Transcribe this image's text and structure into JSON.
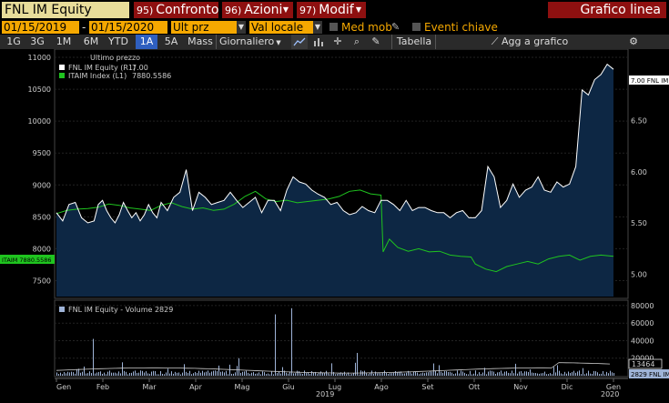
{
  "header": {
    "ticker": "FNL IM Equity",
    "buttons": [
      {
        "num": "95)",
        "label": "Confronto"
      },
      {
        "num": "96)",
        "label": "Azioni"
      },
      {
        "num": "97)",
        "label": "Modif"
      }
    ],
    "title": "Grafico linea"
  },
  "dates": {
    "start": "01/15/2019",
    "separator": "-",
    "end": "01/15/2020",
    "field": "Ult prz",
    "currency": "Val locale",
    "med_mob": "Med mob",
    "eventi": "Eventi chiave"
  },
  "ranges": {
    "items": [
      "1G",
      "3G",
      "1M",
      "6M",
      "YTD",
      "1A",
      "5A",
      "Mass"
    ],
    "active": "1A",
    "frequency": "Giornaliero",
    "table": "Tabella",
    "add": "Agg a grafico"
  },
  "colors": {
    "price_line": "#ffffff",
    "index_line": "#1fc41f",
    "area_fill": "#0d2744",
    "volume_bar": "#9fb4d8",
    "volume_avg": "#cccccc"
  },
  "chart_data": {
    "type": "line",
    "legend": {
      "title": "Ultimo prezzo",
      "entries": [
        {
          "name": "FNL IM Equity  (R1)",
          "value": "7.00"
        },
        {
          "name": "ITAIM Index  (L1)",
          "value": "7880.5586"
        }
      ]
    },
    "left_axis": {
      "ticks": [
        7500,
        8000,
        8500,
        9000,
        9500,
        10000,
        10500,
        11000
      ],
      "range": [
        7250,
        11100
      ]
    },
    "right_axis": {
      "ticks": [
        "5.00",
        "5.50",
        "6.00",
        "6.50"
      ],
      "range": [
        4.78,
        7.18
      ]
    },
    "last_labels": {
      "price": "7.00 FNL IM",
      "index": "ITAIM 7880.5586"
    },
    "x_months": [
      "Gen",
      "Feb",
      "Mar",
      "Apr",
      "Mag",
      "Giu",
      "Lug",
      "Ago",
      "Set",
      "Ott",
      "Nov",
      "Dic",
      "Gen"
    ],
    "x_years": [
      "2019",
      "2020"
    ],
    "series": [
      {
        "name": "FNL IM Equity",
        "axis": "R1",
        "points": [
          [
            0,
            5.6
          ],
          [
            0.3,
            5.52
          ],
          [
            0.6,
            5.68
          ],
          [
            0.9,
            5.7
          ],
          [
            1.2,
            5.55
          ],
          [
            1.5,
            5.5
          ],
          [
            1.8,
            5.52
          ],
          [
            2.0,
            5.68
          ],
          [
            2.2,
            5.72
          ],
          [
            2.4,
            5.62
          ],
          [
            2.6,
            5.55
          ],
          [
            2.8,
            5.5
          ],
          [
            3.0,
            5.58
          ],
          [
            3.2,
            5.7
          ],
          [
            3.4,
            5.62
          ],
          [
            3.6,
            5.55
          ],
          [
            3.8,
            5.6
          ],
          [
            4.0,
            5.52
          ],
          [
            4.2,
            5.58
          ],
          [
            4.4,
            5.68
          ],
          [
            4.6,
            5.6
          ],
          [
            4.8,
            5.55
          ],
          [
            5.0,
            5.7
          ],
          [
            5.3,
            5.62
          ],
          [
            5.6,
            5.75
          ],
          [
            5.9,
            5.8
          ],
          [
            6.2,
            6.02
          ],
          [
            6.5,
            5.62
          ],
          [
            6.8,
            5.8
          ],
          [
            7.1,
            5.75
          ],
          [
            7.4,
            5.68
          ],
          [
            7.7,
            5.7
          ],
          [
            8.0,
            5.72
          ],
          [
            8.3,
            5.8
          ],
          [
            8.6,
            5.72
          ],
          [
            8.9,
            5.65
          ],
          [
            9.2,
            5.7
          ],
          [
            9.5,
            5.75
          ],
          [
            9.8,
            5.6
          ],
          [
            10.1,
            5.72
          ],
          [
            10.4,
            5.72
          ],
          [
            10.7,
            5.62
          ],
          [
            11.0,
            5.82
          ],
          [
            11.3,
            5.95
          ],
          [
            11.6,
            5.9
          ],
          [
            11.9,
            5.88
          ],
          [
            12.2,
            5.82
          ],
          [
            12.5,
            5.78
          ],
          [
            12.8,
            5.75
          ],
          [
            13.1,
            5.68
          ],
          [
            13.4,
            5.7
          ],
          [
            13.7,
            5.62
          ],
          [
            14.0,
            5.58
          ],
          [
            14.3,
            5.6
          ],
          [
            14.6,
            5.66
          ],
          [
            14.9,
            5.62
          ],
          [
            15.2,
            5.6
          ],
          [
            15.5,
            5.72
          ],
          [
            15.8,
            5.72
          ],
          [
            16.1,
            5.68
          ],
          [
            16.4,
            5.62
          ],
          [
            16.7,
            5.72
          ],
          [
            17.0,
            5.62
          ],
          [
            17.3,
            5.65
          ],
          [
            17.6,
            5.65
          ],
          [
            17.9,
            5.62
          ],
          [
            18.2,
            5.6
          ],
          [
            18.5,
            5.6
          ],
          [
            18.8,
            5.55
          ],
          [
            19.1,
            5.6
          ],
          [
            19.4,
            5.62
          ],
          [
            19.7,
            5.55
          ],
          [
            20.0,
            5.55
          ],
          [
            20.3,
            5.62
          ],
          [
            20.6,
            6.05
          ],
          [
            20.9,
            5.95
          ],
          [
            21.2,
            5.65
          ],
          [
            21.5,
            5.72
          ],
          [
            21.8,
            5.88
          ],
          [
            22.1,
            5.75
          ],
          [
            22.4,
            5.82
          ],
          [
            22.7,
            5.85
          ],
          [
            23.0,
            5.95
          ],
          [
            23.3,
            5.82
          ],
          [
            23.6,
            5.8
          ],
          [
            23.9,
            5.9
          ],
          [
            24.2,
            5.85
          ],
          [
            24.5,
            5.88
          ],
          [
            24.8,
            6.05
          ],
          [
            25.1,
            6.8
          ],
          [
            25.4,
            6.75
          ],
          [
            25.7,
            6.9
          ],
          [
            26.0,
            6.95
          ],
          [
            26.3,
            7.05
          ],
          [
            26.6,
            7.0
          ]
        ]
      },
      {
        "name": "ITAIM Index",
        "axis": "L1",
        "points": [
          [
            0,
            8550
          ],
          [
            0.5,
            8600
          ],
          [
            1.0,
            8620
          ],
          [
            1.5,
            8630
          ],
          [
            2.0,
            8650
          ],
          [
            2.5,
            8700
          ],
          [
            3.0,
            8680
          ],
          [
            3.5,
            8640
          ],
          [
            4.0,
            8620
          ],
          [
            4.5,
            8600
          ],
          [
            5.0,
            8680
          ],
          [
            5.5,
            8720
          ],
          [
            6.0,
            8660
          ],
          [
            6.5,
            8620
          ],
          [
            7.0,
            8640
          ],
          [
            7.5,
            8600
          ],
          [
            8.0,
            8620
          ],
          [
            8.5,
            8700
          ],
          [
            9.0,
            8820
          ],
          [
            9.5,
            8900
          ],
          [
            10.0,
            8780
          ],
          [
            10.5,
            8740
          ],
          [
            11.0,
            8760
          ],
          [
            11.5,
            8720
          ],
          [
            12.0,
            8740
          ],
          [
            12.5,
            8760
          ],
          [
            13.0,
            8780
          ],
          [
            13.5,
            8820
          ],
          [
            14.0,
            8900
          ],
          [
            14.5,
            8920
          ],
          [
            15.0,
            8860
          ],
          [
            15.5,
            8840
          ],
          [
            15.6,
            7950
          ],
          [
            15.9,
            8150
          ],
          [
            16.3,
            8020
          ],
          [
            16.8,
            7960
          ],
          [
            17.3,
            8000
          ],
          [
            17.8,
            7950
          ],
          [
            18.3,
            7960
          ],
          [
            18.8,
            7900
          ],
          [
            19.3,
            7880
          ],
          [
            19.8,
            7870
          ],
          [
            20.0,
            7760
          ],
          [
            20.5,
            7680
          ],
          [
            21.0,
            7640
          ],
          [
            21.5,
            7720
          ],
          [
            22.0,
            7760
          ],
          [
            22.5,
            7800
          ],
          [
            23.0,
            7760
          ],
          [
            23.5,
            7840
          ],
          [
            24.0,
            7880
          ],
          [
            24.5,
            7900
          ],
          [
            25.0,
            7820
          ],
          [
            25.5,
            7880
          ],
          [
            26.0,
            7900
          ],
          [
            26.6,
            7880
          ]
        ]
      }
    ],
    "volume": {
      "title": "FNL IM Equity - Volume 2829",
      "axis_ticks": [
        "80000",
        "60000",
        "40000",
        "20000"
      ],
      "range": [
        0,
        82000
      ],
      "avg_label": "13464",
      "last_label": "2829 FNL IM"
    }
  }
}
